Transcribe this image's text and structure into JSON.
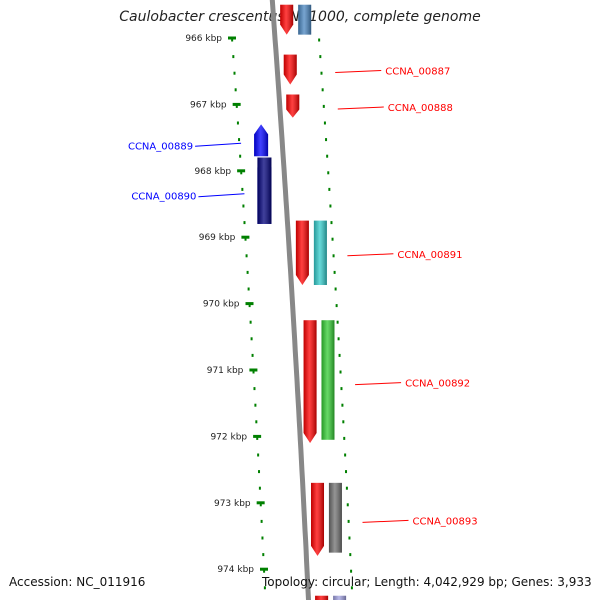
{
  "title": "Caulobacter crescentus NA1000, complete genome",
  "footer": {
    "accession": "Accession: NC_011916",
    "topology": "Topology: circular; Length: 4,042,929 bp; Genes: 3,933"
  },
  "axis_unit": "kbp",
  "view_range_kbp": [
    965.55,
    974.45
  ],
  "tick_labels": [
    {
      "kbp": 966,
      "label": "966 kbp"
    },
    {
      "kbp": 967,
      "label": "967 kbp"
    },
    {
      "kbp": 968,
      "label": "968 kbp"
    },
    {
      "kbp": 969,
      "label": "969 kbp"
    },
    {
      "kbp": 970,
      "label": "970 kbp"
    },
    {
      "kbp": 971,
      "label": "971 kbp"
    },
    {
      "kbp": 972,
      "label": "972 kbp"
    },
    {
      "kbp": 973,
      "label": "973 kbp"
    },
    {
      "kbp": 974,
      "label": "974 kbp"
    }
  ],
  "colors": {
    "forward": "#ff0000",
    "reverse": "#0000ff",
    "reverse_dark": "#00007a",
    "green": "#33cc33",
    "gray": "#707070",
    "cyan": "#33cccc",
    "steel": "#4a86c0",
    "lavender": "#a0a0e0",
    "backbone": "#888888",
    "ticks": "#008000"
  },
  "tracks": [
    {
      "name": "reverse-strand",
      "features": [
        {
          "start": 967.3,
          "end": 967.78,
          "dir": "up",
          "color": "#0000ff",
          "label": "CCNA_00889",
          "label_side": "left"
        },
        {
          "start": 967.8,
          "end": 968.8,
          "dir": "up",
          "color": "#0000ff",
          "label": "",
          "label_side": ""
        },
        {
          "start": 967.8,
          "end": 968.8,
          "dir": "none",
          "color": "#00007a",
          "label": "CCNA_00890",
          "label_side": "left"
        }
      ]
    },
    {
      "name": "forward-strand",
      "features": [
        {
          "start": 965.5,
          "end": 965.95,
          "dir": "down",
          "color": "#ff0000",
          "label": "",
          "label_side": ""
        },
        {
          "start": 966.25,
          "end": 966.7,
          "dir": "down",
          "color": "#ff0000",
          "label": "CCNA_00887",
          "label_side": "right"
        },
        {
          "start": 966.85,
          "end": 967.2,
          "dir": "down",
          "color": "#ff0000",
          "label": "CCNA_00888",
          "label_side": "right"
        },
        {
          "start": 968.75,
          "end": 969.72,
          "dir": "down",
          "color": "#ff0000",
          "label": "CCNA_00891",
          "label_side": "right"
        },
        {
          "start": 970.25,
          "end": 972.1,
          "dir": "down",
          "color": "#ff0000",
          "label": "CCNA_00892",
          "label_side": "right"
        },
        {
          "start": 972.7,
          "end": 973.8,
          "dir": "down",
          "color": "#ff0000",
          "label": "CCNA_00893",
          "label_side": "right"
        },
        {
          "start": 974.4,
          "end": 974.6,
          "dir": "none",
          "color": "#ff0000",
          "label": "",
          "label_side": ""
        }
      ]
    },
    {
      "name": "forward-outer",
      "features": [
        {
          "start": 965.5,
          "end": 965.95,
          "dir": "none",
          "color": "#4a86c0",
          "label": "",
          "label_side": ""
        },
        {
          "start": 968.75,
          "end": 969.72,
          "dir": "none",
          "color": "#33cccc",
          "label": "",
          "label_side": ""
        },
        {
          "start": 970.25,
          "end": 972.05,
          "dir": "none",
          "color": "#33cc33",
          "label": "",
          "label_side": ""
        },
        {
          "start": 972.7,
          "end": 973.75,
          "dir": "none",
          "color": "#707070",
          "label": "",
          "label_side": ""
        },
        {
          "start": 974.4,
          "end": 974.6,
          "dir": "none",
          "color": "#a0a0e0",
          "label": "",
          "label_side": ""
        }
      ]
    }
  ]
}
